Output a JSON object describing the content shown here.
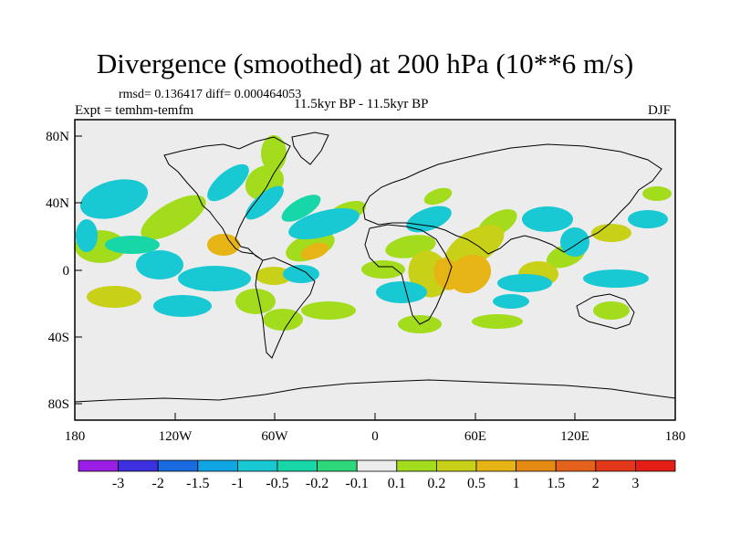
{
  "title": "Divergence (smoothed) at 200 hPa (10**6 m/s)",
  "stats": "rmsd= 0.136417  diff= 0.000464053",
  "expt": "Expt = temhm-temfm",
  "period": "11.5kyr BP - 11.5kyr BP",
  "season": "DJF",
  "lat_ticks": [
    "80N",
    "40N",
    "0",
    "40S",
    "80S"
  ],
  "lon_ticks": [
    "180",
    "120W",
    "60W",
    "0",
    "60E",
    "120E",
    "180"
  ],
  "colorbar": {
    "labels": [
      "-3",
      "-2",
      "-1.5",
      "-1",
      "-0.5",
      "-0.2",
      "-0.1",
      "0.1",
      "0.2",
      "0.5",
      "1",
      "1.5",
      "2",
      "3"
    ],
    "colors": [
      "#9b1ee6",
      "#3c30e0",
      "#1a6be0",
      "#10a6e6",
      "#18c8d2",
      "#17d6a8",
      "#2ed87a",
      "#ececec",
      "#a2dc1c",
      "#c8d018",
      "#e6b414",
      "#e48a12",
      "#e4621c",
      "#e4381c",
      "#e41e14"
    ]
  },
  "fill_colors": {
    "ocean_bg": "#ececec",
    "green": "#a2dc1c",
    "olive": "#c8d018",
    "amber": "#e6b414",
    "orange": "#e48a12",
    "cyan": "#18c8d2",
    "teal": "#2ed87a",
    "seagreen": "#17d6a8"
  }
}
